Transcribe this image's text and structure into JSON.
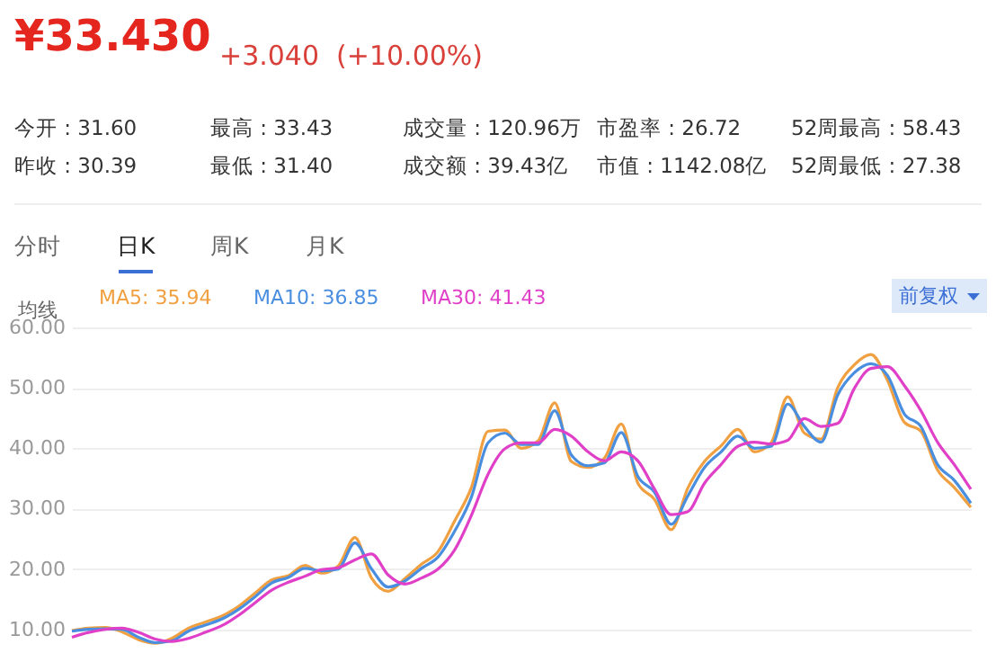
{
  "chart_data": [
    {
      "type": "other",
      "title": "¥33.430",
      "subtitle": "+3.040  (+10.00%)",
      "annotations": [
        "今开 : 31.60",
        "昨收 : 30.39",
        "最高 : 33.43",
        "最低 : 31.40",
        "成交量 : 120.96万",
        "成交额 : 39.43亿",
        "市盈率 : 26.72",
        "市值 : 1142.08亿",
        "52周最高 : 58.43",
        "52周最低 : 27.38",
        "分时",
        "日K",
        "周K",
        "月K",
        "前复权"
      ]
    },
    {
      "type": "line",
      "categories": [
        null,
        null,
        null,
        null,
        null,
        null,
        null,
        null,
        null,
        null,
        null,
        null,
        null,
        null,
        null,
        null,
        null,
        null,
        null,
        null,
        null,
        null,
        null,
        null,
        null,
        null,
        null,
        null,
        null,
        null,
        null,
        null,
        null,
        null,
        null,
        null,
        null,
        null,
        null,
        null,
        null,
        null,
        null,
        null,
        null,
        null,
        null,
        null,
        null,
        null,
        null,
        null,
        null,
        null,
        null
      ],
      "legend_title": "均线",
      "legend": "top left",
      "grid": "y",
      "tick_labels": "y",
      "ylim": [
        4,
        60
      ],
      "yticks": [
        {
          "value": 10,
          "label": "10.00"
        },
        {
          "value": 20,
          "label": "20.00"
        },
        {
          "value": 30,
          "label": "30.00"
        },
        {
          "value": 40,
          "label": "40.00"
        },
        {
          "value": 50,
          "label": "50.00"
        },
        {
          "value": 60,
          "label": "60.00"
        }
      ],
      "series": [
        {
          "name": "MA5: 35.94",
          "color": "#f0a040",
          "values": [
            9.8,
            10.2,
            10.3,
            9.6,
            8.3,
            7.7,
            8.5,
            10.2,
            11.2,
            12.2,
            13.8,
            16,
            18.2,
            18.9,
            20.6,
            19.3,
            20.5,
            25.2,
            18.5,
            16.3,
            18.4,
            20.8,
            22.9,
            28,
            33.5,
            42.8,
            43,
            40,
            41.2,
            47.5,
            37.8,
            36.8,
            38.4,
            44,
            34.2,
            31.5,
            26.5,
            33.4,
            37.8,
            40.4,
            43.1,
            39.4,
            40.9,
            48.5,
            42.5,
            41.5,
            50,
            53.8,
            55.5,
            51.2,
            44.3,
            42.8,
            36.4,
            33.5,
            30.2
          ]
        },
        {
          "name": "MA10: 36.85",
          "color": "#4a8ee0",
          "values": [
            9.7,
            10,
            10.1,
            10,
            8.7,
            7.8,
            8.1,
            9.7,
            10.7,
            11.7,
            13.3,
            15.4,
            17.7,
            18.6,
            20.1,
            19.7,
            20,
            24.3,
            20,
            17,
            18,
            20.1,
            22,
            26.3,
            31.9,
            40.9,
            42.5,
            40.6,
            40.6,
            46.2,
            38.9,
            37.1,
            37.6,
            42.6,
            35.3,
            32.7,
            27.4,
            32.1,
            36.8,
            39.4,
            42,
            40,
            40.3,
            47.3,
            43.6,
            41,
            48.8,
            52.5,
            54,
            52,
            45.7,
            43.6,
            37.3,
            34.7,
            30.9
          ]
        },
        {
          "name": "MA30: 41.43",
          "color": "#e040c8",
          "values": [
            8.7,
            9.5,
            10,
            10.2,
            9.5,
            8.4,
            8,
            8.5,
            9.5,
            10.6,
            12.3,
            14.4,
            16.5,
            17.8,
            18.8,
            19.9,
            20.2,
            21.5,
            22.5,
            19,
            17.5,
            18.5,
            20,
            23.2,
            28.9,
            35.7,
            39.9,
            40.9,
            40.9,
            43.1,
            42,
            39.4,
            37.9,
            39.4,
            37.9,
            33.2,
            29,
            29.5,
            34.2,
            37.3,
            40.3,
            41,
            40.7,
            41.3,
            44.9,
            43.6,
            44.1,
            49.9,
            53.2,
            53.5,
            50.4,
            46.2,
            41,
            37.3,
            33.2
          ]
        }
      ]
    }
  ]
}
